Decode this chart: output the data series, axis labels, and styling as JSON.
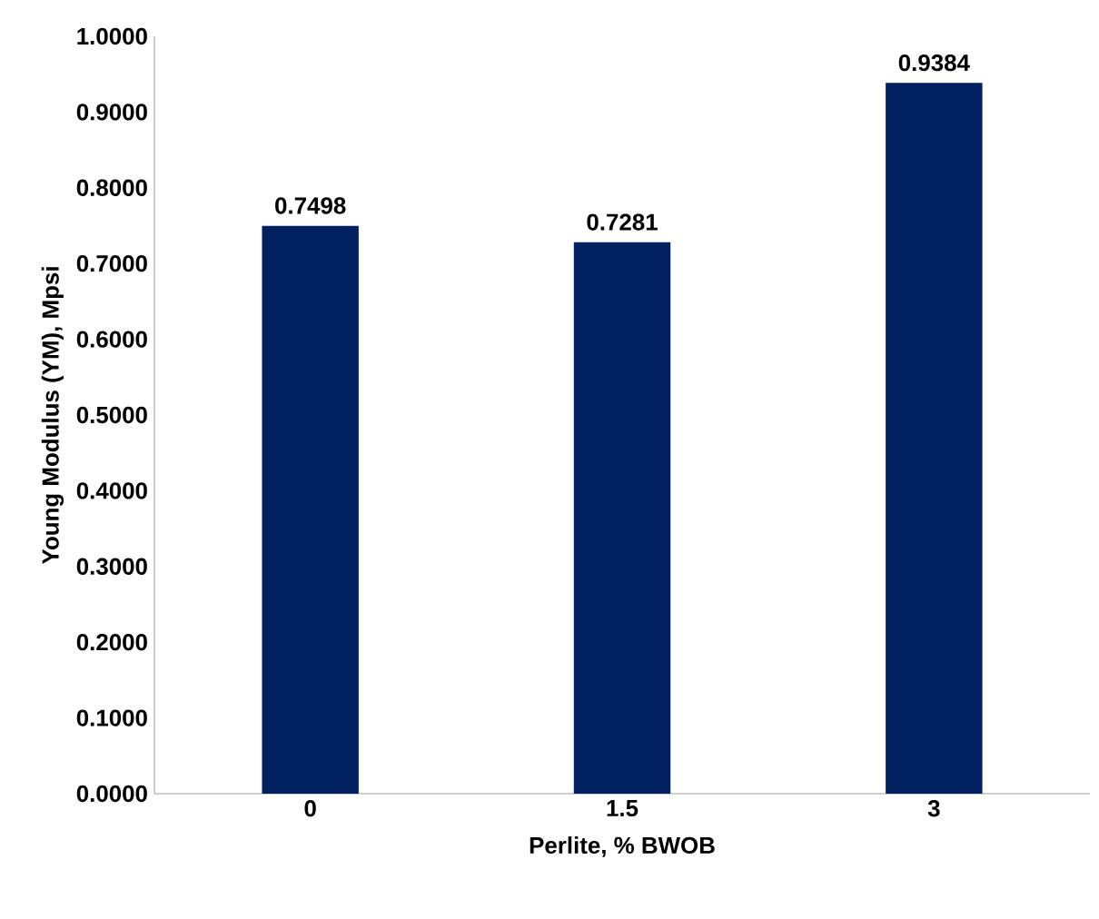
{
  "chart_data": {
    "type": "bar",
    "xlabel": "Perlite, % BWOB",
    "ylabel": "Young Modulus (YM), Mpsi",
    "categories": [
      "0",
      "1.5",
      "3"
    ],
    "values": [
      0.7498,
      0.7281,
      0.9384
    ],
    "color": "#002060",
    "data_labels": true,
    "ylim": [
      0,
      1
    ],
    "yticks": [
      {
        "value": 0,
        "label": "0.0000"
      },
      {
        "value": 0.1,
        "label": "0.1000"
      },
      {
        "value": 0.2,
        "label": "0.2000"
      },
      {
        "value": 0.3,
        "label": "0.3000"
      },
      {
        "value": 0.4,
        "label": "0.4000"
      },
      {
        "value": 0.5,
        "label": "0.5000"
      },
      {
        "value": 0.6,
        "label": "0.6000"
      },
      {
        "value": 0.7,
        "label": "0.7000"
      },
      {
        "value": 0.8,
        "label": "0.8000"
      },
      {
        "value": 0.9,
        "label": "0.9000"
      },
      {
        "value": 1,
        "label": "1.0000"
      }
    ]
  }
}
